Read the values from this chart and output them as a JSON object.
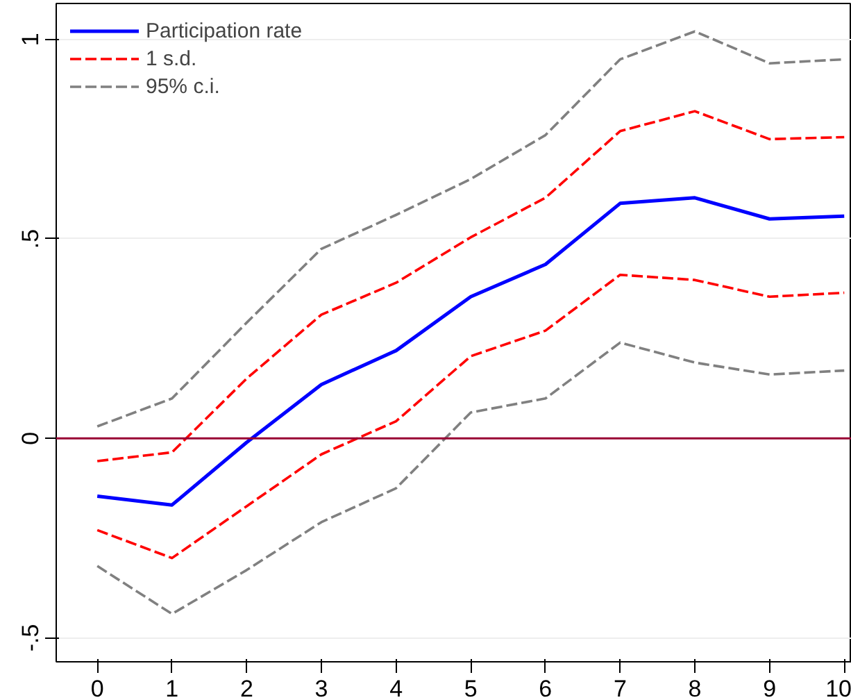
{
  "chart_data": {
    "type": "line",
    "x": [
      0,
      1,
      2,
      3,
      4,
      5,
      6,
      7,
      8,
      9,
      10
    ],
    "series": [
      {
        "name": "Participation rate",
        "color": "#0000ff",
        "line_style": "solid",
        "values": [
          -0.145,
          -0.167,
          -0.01,
          0.135,
          0.22,
          0.355,
          0.436,
          0.589,
          0.603,
          0.55,
          0.557
        ]
      },
      {
        "name": "1 s.d.",
        "color": "#ff0000",
        "line_style": "dashed",
        "values": [
          -0.057,
          -0.035,
          0.15,
          0.31,
          0.39,
          0.504,
          0.603,
          0.77,
          0.82,
          0.75,
          0.755
        ]
      },
      {
        "color": "#ff0000",
        "line_style": "dashed",
        "values": [
          -0.23,
          -0.3,
          -0.17,
          -0.04,
          0.043,
          0.206,
          0.27,
          0.41,
          0.397,
          0.355,
          0.365
        ]
      },
      {
        "name": "95% c.i.",
        "color": "#808080",
        "line_style": "dashed",
        "values": [
          0.03,
          0.1,
          0.29,
          0.475,
          0.56,
          0.65,
          0.76,
          0.95,
          1.02,
          0.94,
          0.95
        ]
      },
      {
        "color": "#808080",
        "line_style": "dashed",
        "values": [
          -0.32,
          -0.44,
          -0.33,
          -0.21,
          -0.125,
          0.065,
          0.1,
          0.24,
          0.19,
          0.16,
          0.17
        ]
      }
    ],
    "xlim": [
      -0.55,
      10.1
    ],
    "ylim": [
      -0.56,
      1.09
    ],
    "xticks": [
      0,
      1,
      2,
      3,
      4,
      5,
      6,
      7,
      8,
      9,
      10
    ],
    "yticks": [
      {
        "value": -0.5,
        "label": "-.5"
      },
      0,
      {
        "value": 0.5,
        "label": ".5"
      },
      1
    ],
    "ref_lines": [
      {
        "axis": "y",
        "value": 0,
        "color": "#990033"
      }
    ],
    "grid": "y",
    "legend": "top left",
    "marker": "none"
  }
}
